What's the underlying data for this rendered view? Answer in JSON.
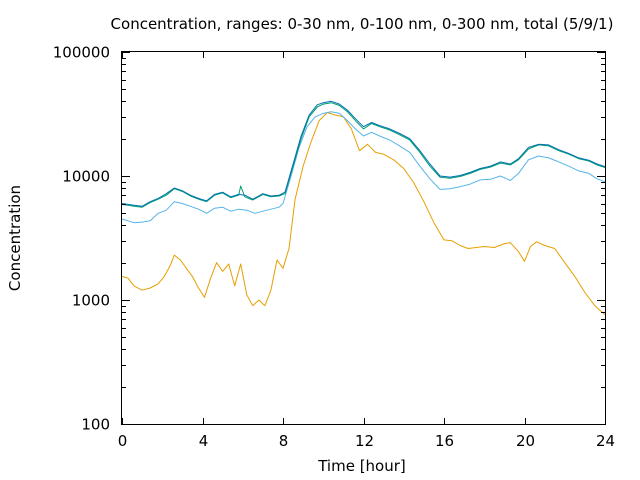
{
  "chart_data": {
    "type": "line",
    "title": "Concentration, ranges: 0-30 nm, 0-100 nm, 0-300 nm, total (5/9/1)",
    "xlabel": "Time [hour]",
    "ylabel": "Concentration",
    "xlim": [
      0,
      24
    ],
    "ylim": [
      100,
      100000
    ],
    "yscale": "log",
    "xticks": [
      "0",
      "4",
      "8",
      "12",
      "16",
      "20",
      "24"
    ],
    "yticks": [
      "100",
      "1000",
      "10000",
      "100000"
    ],
    "grid": false,
    "legend": "none",
    "series": [
      {
        "color": "#E69F00",
        "points": [
          [
            0,
            1550
          ],
          [
            0.3,
            1500
          ],
          [
            0.6,
            1300
          ],
          [
            1,
            1200
          ],
          [
            1.4,
            1250
          ],
          [
            1.8,
            1350
          ],
          [
            2.1,
            1550
          ],
          [
            2.4,
            1900
          ],
          [
            2.6,
            2300
          ],
          [
            2.9,
            2100
          ],
          [
            3.2,
            1800
          ],
          [
            3.5,
            1550
          ],
          [
            3.8,
            1250
          ],
          [
            4.1,
            1050
          ],
          [
            4.4,
            1500
          ],
          [
            4.7,
            2000
          ],
          [
            5,
            1700
          ],
          [
            5.3,
            1950
          ],
          [
            5.6,
            1300
          ],
          [
            5.9,
            1950
          ],
          [
            6.2,
            1100
          ],
          [
            6.5,
            900
          ],
          [
            6.8,
            1000
          ],
          [
            7.1,
            900
          ],
          [
            7.4,
            1200
          ],
          [
            7.7,
            2100
          ],
          [
            8,
            1800
          ],
          [
            8.3,
            2600
          ],
          [
            8.6,
            6500
          ],
          [
            9,
            12000
          ],
          [
            9.4,
            19000
          ],
          [
            9.8,
            28000
          ],
          [
            10.2,
            32500
          ],
          [
            10.6,
            31000
          ],
          [
            11,
            30000
          ],
          [
            11.4,
            24000
          ],
          [
            11.8,
            16000
          ],
          [
            12.2,
            18000
          ],
          [
            12.6,
            15500
          ],
          [
            13,
            15000
          ],
          [
            13.5,
            13500
          ],
          [
            14,
            11500
          ],
          [
            14.5,
            8800
          ],
          [
            15,
            6200
          ],
          [
            15.5,
            4200
          ],
          [
            16,
            3050
          ],
          [
            16.4,
            3000
          ],
          [
            16.8,
            2750
          ],
          [
            17.2,
            2600
          ],
          [
            17.6,
            2650
          ],
          [
            18,
            2700
          ],
          [
            18.5,
            2650
          ],
          [
            19,
            2850
          ],
          [
            19.3,
            2900
          ],
          [
            19.7,
            2450
          ],
          [
            20,
            2050
          ],
          [
            20.3,
            2700
          ],
          [
            20.6,
            2950
          ],
          [
            21,
            2750
          ],
          [
            21.5,
            2600
          ],
          [
            22,
            2000
          ],
          [
            22.5,
            1550
          ],
          [
            23,
            1150
          ],
          [
            23.5,
            900
          ],
          [
            24,
            760
          ]
        ]
      },
      {
        "color": "#56B4E9",
        "points": [
          [
            0,
            4500
          ],
          [
            0.3,
            4350
          ],
          [
            0.6,
            4200
          ],
          [
            1,
            4250
          ],
          [
            1.4,
            4350
          ],
          [
            1.8,
            5000
          ],
          [
            2.2,
            5300
          ],
          [
            2.6,
            6200
          ],
          [
            3,
            6000
          ],
          [
            3.4,
            5700
          ],
          [
            3.8,
            5400
          ],
          [
            4.2,
            5000
          ],
          [
            4.6,
            5500
          ],
          [
            5,
            5600
          ],
          [
            5.4,
            5200
          ],
          [
            5.8,
            5400
          ],
          [
            6.2,
            5300
          ],
          [
            6.6,
            5000
          ],
          [
            7,
            5200
          ],
          [
            7.4,
            5400
          ],
          [
            7.8,
            5600
          ],
          [
            8,
            6000
          ],
          [
            8.4,
            10000
          ],
          [
            8.8,
            17000
          ],
          [
            9.2,
            25000
          ],
          [
            9.6,
            30000
          ],
          [
            10,
            32000
          ],
          [
            10.4,
            33000
          ],
          [
            10.8,
            32000
          ],
          [
            11.2,
            28000
          ],
          [
            11.6,
            24000
          ],
          [
            12,
            21000
          ],
          [
            12.4,
            22500
          ],
          [
            12.8,
            21000
          ],
          [
            13.3,
            19500
          ],
          [
            13.8,
            17500
          ],
          [
            14.3,
            15500
          ],
          [
            14.8,
            12000
          ],
          [
            15.3,
            9500
          ],
          [
            15.8,
            7800
          ],
          [
            16.3,
            7900
          ],
          [
            16.8,
            8200
          ],
          [
            17.3,
            8600
          ],
          [
            17.8,
            9300
          ],
          [
            18.3,
            9400
          ],
          [
            18.8,
            10000
          ],
          [
            19.3,
            9200
          ],
          [
            19.7,
            10500
          ],
          [
            20.2,
            13500
          ],
          [
            20.7,
            14500
          ],
          [
            21.2,
            14000
          ],
          [
            21.7,
            13000
          ],
          [
            22.2,
            12000
          ],
          [
            22.7,
            11000
          ],
          [
            23.2,
            10500
          ],
          [
            23.6,
            9500
          ],
          [
            24,
            9000
          ]
        ]
      },
      {
        "color": "#009E73",
        "points": [
          [
            0,
            5900
          ],
          [
            0.3,
            5800
          ],
          [
            0.6,
            5700
          ],
          [
            1,
            5600
          ],
          [
            1.4,
            6100
          ],
          [
            1.8,
            6500
          ],
          [
            2.2,
            7000
          ],
          [
            2.6,
            7900
          ],
          [
            3,
            7500
          ],
          [
            3.4,
            6900
          ],
          [
            3.8,
            6500
          ],
          [
            4.2,
            6200
          ],
          [
            4.6,
            7000
          ],
          [
            5,
            7300
          ],
          [
            5.4,
            6700
          ],
          [
            5.8,
            7000
          ],
          [
            5.9,
            8300
          ],
          [
            6.1,
            6800
          ],
          [
            6.5,
            6400
          ],
          [
            7,
            7100
          ],
          [
            7.4,
            6800
          ],
          [
            7.8,
            6900
          ],
          [
            8.1,
            7200
          ],
          [
            8.5,
            12000
          ],
          [
            8.9,
            20000
          ],
          [
            9.3,
            30000
          ],
          [
            9.7,
            36000
          ],
          [
            10,
            38000
          ],
          [
            10.4,
            39000
          ],
          [
            10.8,
            37000
          ],
          [
            11.2,
            33000
          ],
          [
            11.6,
            28000
          ],
          [
            12,
            24000
          ],
          [
            12.4,
            26500
          ],
          [
            12.8,
            25000
          ],
          [
            13.3,
            23500
          ],
          [
            13.8,
            21500
          ],
          [
            14.3,
            19500
          ],
          [
            14.8,
            15500
          ],
          [
            15.3,
            12000
          ],
          [
            15.8,
            9800
          ],
          [
            16.3,
            9600
          ],
          [
            16.8,
            9900
          ],
          [
            17.3,
            10500
          ],
          [
            17.8,
            11300
          ],
          [
            18.3,
            11800
          ],
          [
            18.8,
            12700
          ],
          [
            19.3,
            12300
          ],
          [
            19.7,
            13500
          ],
          [
            20.2,
            16500
          ],
          [
            20.7,
            17800
          ],
          [
            21.2,
            17500
          ],
          [
            21.7,
            16000
          ],
          [
            22.2,
            15000
          ],
          [
            22.7,
            13800
          ],
          [
            23.2,
            13200
          ],
          [
            23.6,
            12300
          ],
          [
            24,
            11700
          ]
        ]
      },
      {
        "color": "#0072B2",
        "points": [
          [
            0,
            6000
          ],
          [
            0.3,
            5900
          ],
          [
            0.6,
            5800
          ],
          [
            1,
            5700
          ],
          [
            1.4,
            6200
          ],
          [
            1.8,
            6600
          ],
          [
            2.2,
            7200
          ],
          [
            2.6,
            8000
          ],
          [
            3,
            7600
          ],
          [
            3.4,
            7000
          ],
          [
            3.8,
            6600
          ],
          [
            4.2,
            6300
          ],
          [
            4.6,
            7100
          ],
          [
            5,
            7400
          ],
          [
            5.4,
            6800
          ],
          [
            5.8,
            7100
          ],
          [
            6.1,
            7000
          ],
          [
            6.5,
            6500
          ],
          [
            7,
            7200
          ],
          [
            7.4,
            6900
          ],
          [
            7.8,
            7000
          ],
          [
            8.1,
            7400
          ],
          [
            8.5,
            12500
          ],
          [
            8.9,
            21000
          ],
          [
            9.3,
            31000
          ],
          [
            9.7,
            37500
          ],
          [
            10,
            39000
          ],
          [
            10.4,
            40000
          ],
          [
            10.8,
            38000
          ],
          [
            11.2,
            34000
          ],
          [
            11.6,
            29000
          ],
          [
            12,
            25000
          ],
          [
            12.4,
            27000
          ],
          [
            12.8,
            25500
          ],
          [
            13.3,
            24000
          ],
          [
            13.8,
            22000
          ],
          [
            14.3,
            20000
          ],
          [
            14.8,
            16000
          ],
          [
            15.3,
            12500
          ],
          [
            15.8,
            10000
          ],
          [
            16.3,
            9800
          ],
          [
            16.8,
            10100
          ],
          [
            17.3,
            10700
          ],
          [
            17.8,
            11500
          ],
          [
            18.3,
            12000
          ],
          [
            18.8,
            13000
          ],
          [
            19.3,
            12500
          ],
          [
            19.7,
            13800
          ],
          [
            20.2,
            17000
          ],
          [
            20.7,
            18000
          ],
          [
            21.2,
            17800
          ],
          [
            21.7,
            16300
          ],
          [
            22.2,
            15200
          ],
          [
            22.7,
            14000
          ],
          [
            23.2,
            13400
          ],
          [
            23.6,
            12500
          ],
          [
            24,
            11900
          ]
        ]
      }
    ]
  }
}
